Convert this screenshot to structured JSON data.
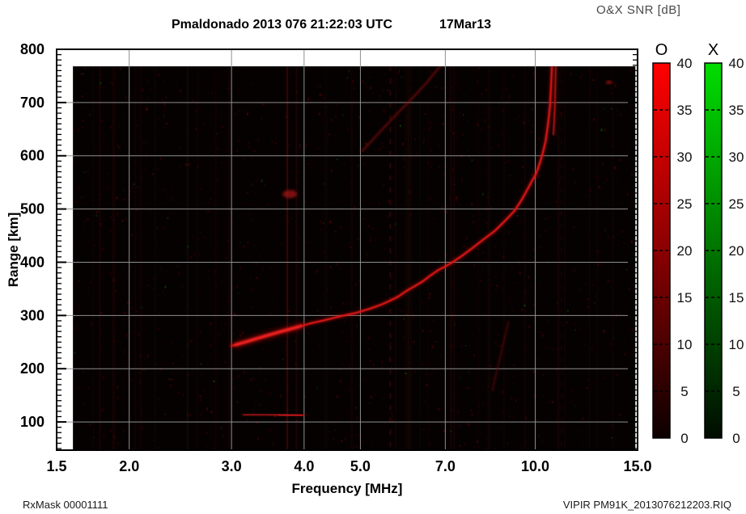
{
  "header": {
    "title": "Pmaldonado 2013 076 21:22:03 UTC",
    "date": "17Mar13",
    "colorbar_title": "O&X SNR [dB]"
  },
  "footer": {
    "left": "RxMask 00001111",
    "right": "VIPIR  PM91K_2013076212203.RIQ"
  },
  "chart_data": {
    "type": "heatmap",
    "title": "Pmaldonado 2013 076 21:22:03 UTC",
    "xlabel": "Frequency [MHz]",
    "ylabel": "Range [km]",
    "x_scale": "log",
    "xlim": [
      1.5,
      15.0
    ],
    "ylim": [
      47,
      800
    ],
    "x_ticks": [
      1.5,
      2.0,
      3.0,
      4.0,
      5.0,
      7.0,
      10.0,
      15.0
    ],
    "x_tick_labels": [
      "1.5",
      "2.0",
      "3.0",
      "4.0",
      "5.0",
      "7.0",
      "10.0",
      "15.0"
    ],
    "y_ticks": [
      100,
      200,
      300,
      400,
      500,
      600,
      700,
      800
    ],
    "y_minor_step": 10,
    "grid": true,
    "grid_color": "#8f8f8f",
    "background_color": "#060101",
    "data_extent": {
      "f": [
        1.6,
        14.87
      ],
      "range": [
        47,
        768
      ]
    },
    "colorbars": [
      {
        "name": "O",
        "top_color": "#ff0000",
        "mid_color": "#8a0000",
        "bottom_color": "#0c0000",
        "ticks": [
          0,
          5,
          10,
          15,
          20,
          25,
          30,
          35,
          40
        ]
      },
      {
        "name": "X",
        "top_color": "#00dd00",
        "mid_color": "#007400",
        "bottom_color": "#000c00",
        "ticks": [
          0,
          5,
          10,
          15,
          20,
          25,
          30,
          35,
          40
        ]
      }
    ],
    "series": [
      {
        "name": "f-layer-o-trace",
        "layers": [
          {
            "color": "#b40f0f",
            "width": 4.5,
            "blur": 1.8,
            "opacity": 0.55
          },
          {
            "color": "#e61717",
            "width": 2.2,
            "blur": 0.6,
            "opacity": 0.95
          }
        ],
        "points": [
          [
            3.0,
            243
          ],
          [
            3.1,
            247
          ],
          [
            3.22,
            252
          ],
          [
            3.35,
            258
          ],
          [
            3.5,
            264
          ],
          [
            3.65,
            270
          ],
          [
            3.8,
            275
          ],
          [
            3.95,
            280
          ],
          [
            4.1,
            285
          ],
          [
            4.33,
            291
          ],
          [
            4.6,
            298
          ],
          [
            4.92,
            305
          ],
          [
            5.2,
            313
          ],
          [
            5.45,
            321
          ],
          [
            5.6,
            327
          ],
          [
            5.8,
            335
          ],
          [
            6.0,
            346
          ],
          [
            6.2,
            355
          ],
          [
            6.4,
            364
          ],
          [
            6.6,
            375
          ],
          [
            6.8,
            385
          ],
          [
            7.0,
            392
          ],
          [
            7.2,
            400
          ],
          [
            7.5,
            413
          ],
          [
            7.8,
            427
          ],
          [
            8.1,
            441
          ],
          [
            8.5,
            458
          ],
          [
            8.8,
            474
          ],
          [
            9.2,
            496
          ],
          [
            9.45,
            515
          ],
          [
            9.65,
            533
          ],
          [
            9.85,
            551
          ],
          [
            10.03,
            566
          ],
          [
            10.18,
            586
          ],
          [
            10.3,
            605
          ],
          [
            10.41,
            626
          ],
          [
            10.49,
            650
          ],
          [
            10.56,
            676
          ],
          [
            10.61,
            700
          ],
          [
            10.64,
            725
          ],
          [
            10.66,
            745
          ],
          [
            10.68,
            768
          ]
        ]
      },
      {
        "name": "f-layer-head-bright",
        "layers": [
          {
            "color": "#c01010",
            "width": 8,
            "blur": 3.0,
            "opacity": 0.45
          },
          {
            "color": "#f02020",
            "width": 3.5,
            "blur": 1.0,
            "opacity": 0.9
          }
        ],
        "points": [
          [
            3.05,
            245
          ],
          [
            3.3,
            256
          ],
          [
            3.55,
            266
          ],
          [
            3.8,
            275
          ],
          [
            3.95,
            280
          ]
        ]
      },
      {
        "name": "asymptote-second-strand",
        "layers": [
          {
            "color": "#a80f0f",
            "width": 3,
            "blur": 1.5,
            "opacity": 0.6
          },
          {
            "color": "#d01414",
            "width": 1.6,
            "blur": 0.6,
            "opacity": 0.85
          }
        ],
        "points": [
          [
            10.74,
            640
          ],
          [
            10.78,
            668
          ],
          [
            10.81,
            700
          ],
          [
            10.83,
            735
          ],
          [
            10.85,
            768
          ]
        ]
      },
      {
        "name": "second-hop-diagonal",
        "layers": [
          {
            "color": "#8a0e0e",
            "width": 2.8,
            "blur": 1.4,
            "opacity": 0.6
          }
        ],
        "points": [
          [
            5.04,
            609
          ],
          [
            5.35,
            640
          ],
          [
            5.7,
            672
          ],
          [
            6.1,
            705
          ],
          [
            6.5,
            737
          ],
          [
            6.89,
            771
          ]
        ]
      },
      {
        "name": "oblique-echo-diagonal",
        "layers": [
          {
            "color": "#6a0a0a",
            "width": 2.4,
            "blur": 1.2,
            "opacity": 0.55
          }
        ],
        "points": [
          [
            8.44,
            159
          ],
          [
            8.57,
            192
          ],
          [
            8.71,
            224
          ],
          [
            8.85,
            257
          ],
          [
            8.99,
            288
          ]
        ]
      },
      {
        "name": "e-layer-echo",
        "layers": [
          {
            "color": "#7a0c0c",
            "width": 5,
            "blur": 2.2,
            "opacity": 0.5
          },
          {
            "color": "#b31212",
            "width": 2.5,
            "blur": 0.8,
            "opacity": 0.7
          }
        ],
        "points": [
          [
            3.15,
            114
          ],
          [
            3.45,
            114
          ],
          [
            3.75,
            113
          ],
          [
            3.99,
            112
          ]
        ]
      },
      {
        "name": "e-layer-bright",
        "layers": [
          {
            "color": "#d81818",
            "width": 4,
            "blur": 1.4,
            "opacity": 0.8
          }
        ],
        "points": [
          [
            3.63,
            113
          ],
          [
            3.97,
            112
          ]
        ]
      }
    ],
    "spots": [
      {
        "name": "echo-blob",
        "f": 3.78,
        "range": 528,
        "rx": 9,
        "ry": 5,
        "color": "#b01212",
        "opacity": 0.7
      },
      {
        "name": "echo-fleck",
        "f": 13.4,
        "range": 738,
        "rx": 4,
        "ry": 1.8,
        "color": "#c01414",
        "opacity": 0.8
      }
    ],
    "rfi_stripes": [
      {
        "f": 1.78,
        "color": "#7a1010",
        "opacity": 0.16
      },
      {
        "f": 2.05,
        "color": "#6a0d0d",
        "opacity": 0.1
      },
      {
        "f": 2.52,
        "color": "#0d5a0d",
        "opacity": 0.1
      },
      {
        "f": 3.74,
        "color": "#8a1212",
        "opacity": 0.32
      },
      {
        "f": 3.88,
        "color": "#701010",
        "opacity": 0.18
      },
      {
        "f": 5.63,
        "color": "#8a1212",
        "opacity": 0.28,
        "dashed": true
      },
      {
        "f": 7.25,
        "color": "#6a0d0d",
        "opacity": 0.13
      },
      {
        "f": 8.3,
        "color": "#5f0c0c",
        "opacity": 0.11
      },
      {
        "f": 9.6,
        "color": "#5f0c0c",
        "opacity": 0.11
      },
      {
        "f": 11.1,
        "color": "#6a0d0d",
        "opacity": 0.14,
        "dashed": true
      },
      {
        "f": 12.4,
        "color": "#5f0c0c",
        "opacity": 0.09
      },
      {
        "f": 13.6,
        "color": "#5f0c0c",
        "opacity": 0.09
      }
    ],
    "noise": {
      "count": 1500,
      "columns": 30,
      "seed": 7
    }
  }
}
